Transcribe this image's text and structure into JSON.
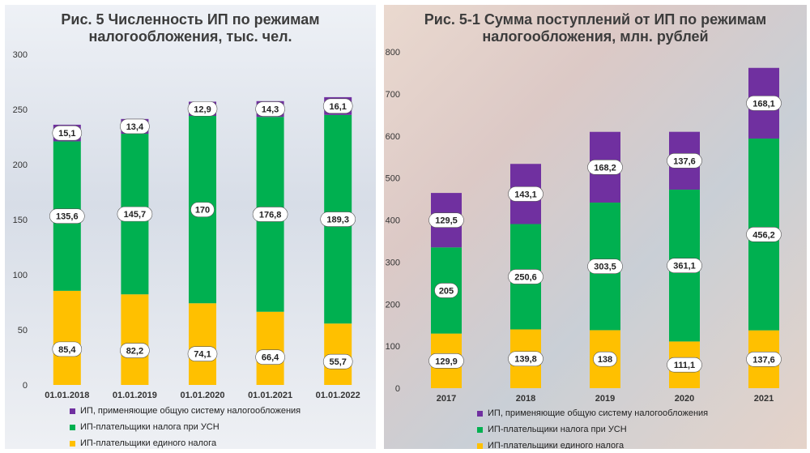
{
  "colors": {
    "obshaya": "#7030a0",
    "usn": "#00b050",
    "edinyi": "#ffc000"
  },
  "chart_data": [
    {
      "type": "bar",
      "stacked": true,
      "title": "Рис. 5 Численность ИП по режимам налогообложения, тыс. чел.",
      "title_lines": [
        "Рис. 5 Численность ИП по режимам",
        "налогообложения, тыс. чел."
      ],
      "categories": [
        "01.01.2018",
        "01.01.2019",
        "01.01.2020",
        "01.01.2021",
        "01.01.2022"
      ],
      "ylim": [
        0,
        300
      ],
      "yticks": [
        0,
        50,
        100,
        150,
        200,
        250,
        300
      ],
      "series": [
        {
          "name": "ИП-плательщики единого налога",
          "color": "#ffc000",
          "values": [
            85.4,
            82.2,
            74.1,
            66.4,
            55.7
          ],
          "labels": [
            "85,4",
            "82,2",
            "74,1",
            "66,4",
            "55,7"
          ]
        },
        {
          "name": "ИП-плательщики налога при УСН",
          "color": "#00b050",
          "values": [
            135.6,
            145.7,
            170,
            176.8,
            189.3
          ],
          "labels": [
            "135,6",
            "145,7",
            "170",
            "176,8",
            "189,3"
          ]
        },
        {
          "name": "ИП, применяющие общую систему налогообложения",
          "color": "#7030a0",
          "values": [
            15.1,
            13.4,
            12.9,
            14.3,
            16.1
          ],
          "labels": [
            "15,1",
            "13,4",
            "12,9",
            "14,3",
            "16,1"
          ]
        }
      ],
      "legend": [
        "ИП, применяющие общую систему налогообложения",
        "ИП-плательщики налога при УСН",
        "ИП-плательщики единого налога"
      ],
      "legend_position": "bottom"
    },
    {
      "type": "bar",
      "stacked": true,
      "title": "Рис. 5-1 Сумма поступлений от ИП по режимам налогообложения, млн. рублей",
      "title_lines": [
        "Рис. 5-1 Сумма поступлений от ИП по режимам",
        "налогообложения, млн. рублей"
      ],
      "categories": [
        "2017",
        "2018",
        "2019",
        "2020",
        "2021"
      ],
      "ylim": [
        0,
        800
      ],
      "yticks": [
        0,
        100,
        200,
        300,
        400,
        500,
        600,
        700,
        800
      ],
      "series": [
        {
          "name": "ИП-плательщики единого налога",
          "color": "#ffc000",
          "values": [
            129.9,
            139.8,
            138,
            111.1,
            137.6
          ],
          "labels": [
            "129,9",
            "139,8",
            "138",
            "111,1",
            "137,6"
          ]
        },
        {
          "name": "ИП-плательщики налога при УСН",
          "color": "#00b050",
          "values": [
            205,
            250.6,
            303.5,
            361.1,
            456.2
          ],
          "labels": [
            "205",
            "250,6",
            "303,5",
            "361,1",
            "456,2"
          ]
        },
        {
          "name": "ИП, применяющие общую систему налогообложения",
          "color": "#7030a0",
          "values": [
            129.5,
            143.1,
            168.2,
            137.6,
            168.1
          ],
          "labels": [
            "129,5",
            "143,1",
            "168,2",
            "137,6",
            "168,1"
          ]
        }
      ],
      "legend": [
        "ИП, применяющие общую систему налогообложения",
        "ИП-плательщики налога при УСН",
        "ИП-плательщики единого налога"
      ],
      "legend_position": "bottom"
    }
  ]
}
